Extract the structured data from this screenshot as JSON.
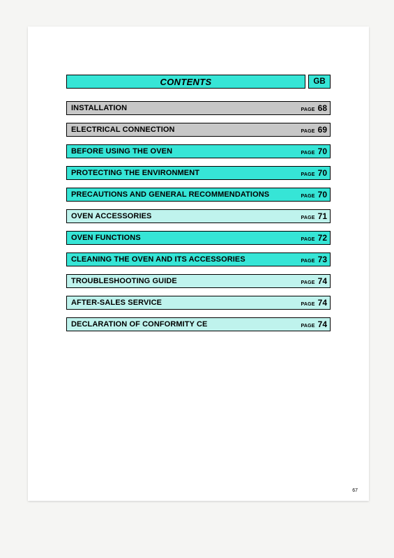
{
  "colors": {
    "cyan_strong": "#36e5d6",
    "cyan_light": "#bff3ed",
    "grey": "#c7c7c7",
    "page_bg": "#ffffff",
    "body_bg": "#f5f5f3",
    "border": "#000000",
    "text": "#000000"
  },
  "header": {
    "contents_label": "CONTENTS",
    "lang_code": "GB"
  },
  "page_word": "PAGE",
  "footer_page_number": "67",
  "toc": [
    {
      "title": "INSTALLATION",
      "page": "68",
      "style": "grey"
    },
    {
      "title": "ELECTRICAL CONNECTION",
      "page": "69",
      "style": "grey"
    },
    {
      "title": "BEFORE USING THE OVEN",
      "page": "70",
      "style": "cyan_strong"
    },
    {
      "title": "PROTECTING THE ENVIRONMENT",
      "page": "70",
      "style": "cyan_strong"
    },
    {
      "title": "PRECAUTIONS AND GENERAL RECOMMENDATIONS",
      "page": "70",
      "style": "cyan_strong"
    },
    {
      "title": "OVEN ACCESSORIES",
      "page": "71",
      "style": "cyan_light"
    },
    {
      "title": "OVEN FUNCTIONS",
      "page": "72",
      "style": "cyan_strong"
    },
    {
      "title": "CLEANING THE OVEN AND ITS ACCESSORIES",
      "page": "73",
      "style": "cyan_strong"
    },
    {
      "title": "TROUBLESHOOTING GUIDE",
      "page": "74",
      "style": "cyan_light"
    },
    {
      "title": "AFTER-SALES SERVICE",
      "page": "74",
      "style": "cyan_light"
    },
    {
      "title": "DECLARATION OF CONFORMITY CE",
      "page": "74",
      "style": "cyan_light"
    }
  ]
}
